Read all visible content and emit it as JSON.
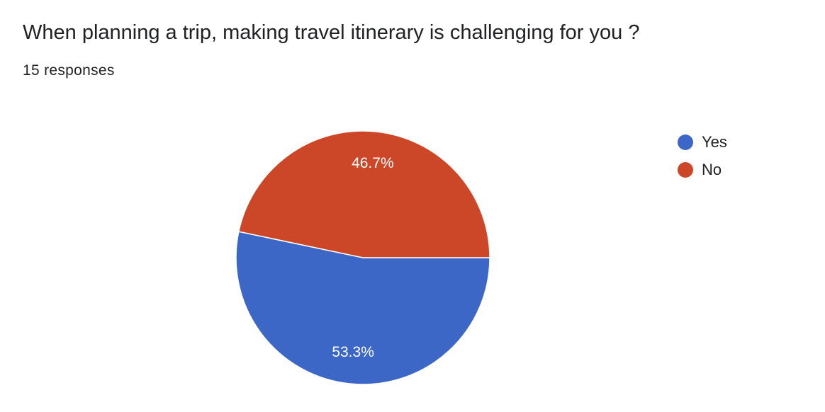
{
  "question": {
    "title": "When planning a trip, making travel itinerary is challenging for you ?",
    "responses": "15 responses"
  },
  "chart_data": {
    "type": "pie",
    "categories": [
      "Yes",
      "No"
    ],
    "values": [
      53.3,
      46.7
    ],
    "labels": [
      "53.3%",
      "46.7%"
    ],
    "colors": [
      "#3d67c6",
      "#cc4628"
    ],
    "legend_position": "top-right"
  }
}
